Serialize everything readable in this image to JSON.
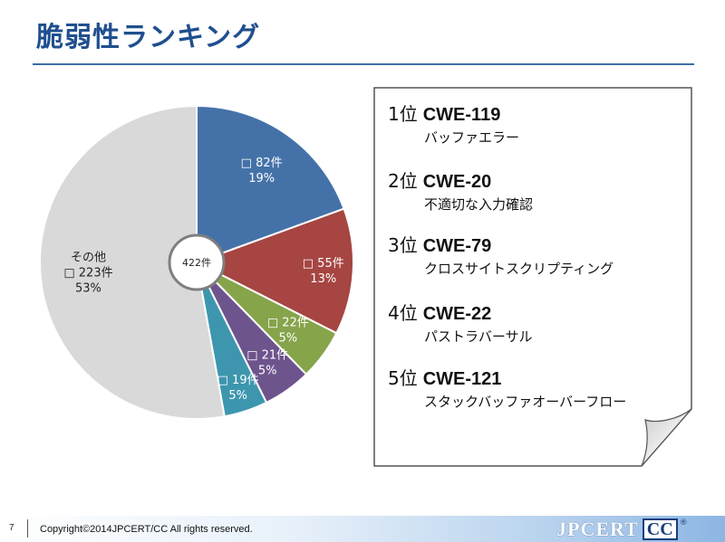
{
  "slide": {
    "title": "脆弱性ランキング",
    "page_number": "7",
    "copyright": "Copyright©2014JPCERT/CC All rights reserved."
  },
  "logo": {
    "text_jp": "JPCERT",
    "text_cc": "CC",
    "reg": "®"
  },
  "chart_data": {
    "type": "pie",
    "center_label": "422件",
    "start_angle_deg": 0,
    "slices": [
      {
        "count": 82,
        "count_label": "82件",
        "percent": 19,
        "percent_label": "19%",
        "color": "#4472a8",
        "label_color": "#ffffff"
      },
      {
        "count": 55,
        "count_label": "55件",
        "percent": 13,
        "percent_label": "13%",
        "color": "#a64542",
        "label_color": "#ffffff"
      },
      {
        "count": 22,
        "count_label": "22件",
        "percent": 5,
        "percent_label": "5%",
        "color": "#86a44a",
        "label_color": "#ffffff"
      },
      {
        "count": 21,
        "count_label": "21件",
        "percent": 5,
        "percent_label": "5%",
        "color": "#6e548d",
        "label_color": "#ffffff"
      },
      {
        "count": 19,
        "count_label": "19件",
        "percent": 5,
        "percent_label": "5%",
        "color": "#3d96ae",
        "label_color": "#ffffff"
      },
      {
        "name": "その他",
        "count": 223,
        "count_label": "223件",
        "percent": 53,
        "percent_label": "53%",
        "color": "#d9d9d9",
        "label_color": "#222222"
      }
    ]
  },
  "ranking": [
    {
      "rank": "1位",
      "cwe": "CWE-119",
      "desc": "バッファエラー"
    },
    {
      "rank": "2位",
      "cwe": "CWE-20",
      "desc": "不適切な入力確認"
    },
    {
      "rank": "3位",
      "cwe": "CWE-79",
      "desc": "クロスサイトスクリプティング"
    },
    {
      "rank": "4位",
      "cwe": "CWE-22",
      "desc": "パストラバーサル"
    },
    {
      "rank": "5位",
      "cwe": "CWE-121",
      "desc": "スタックバッファオーバーフロー"
    }
  ]
}
